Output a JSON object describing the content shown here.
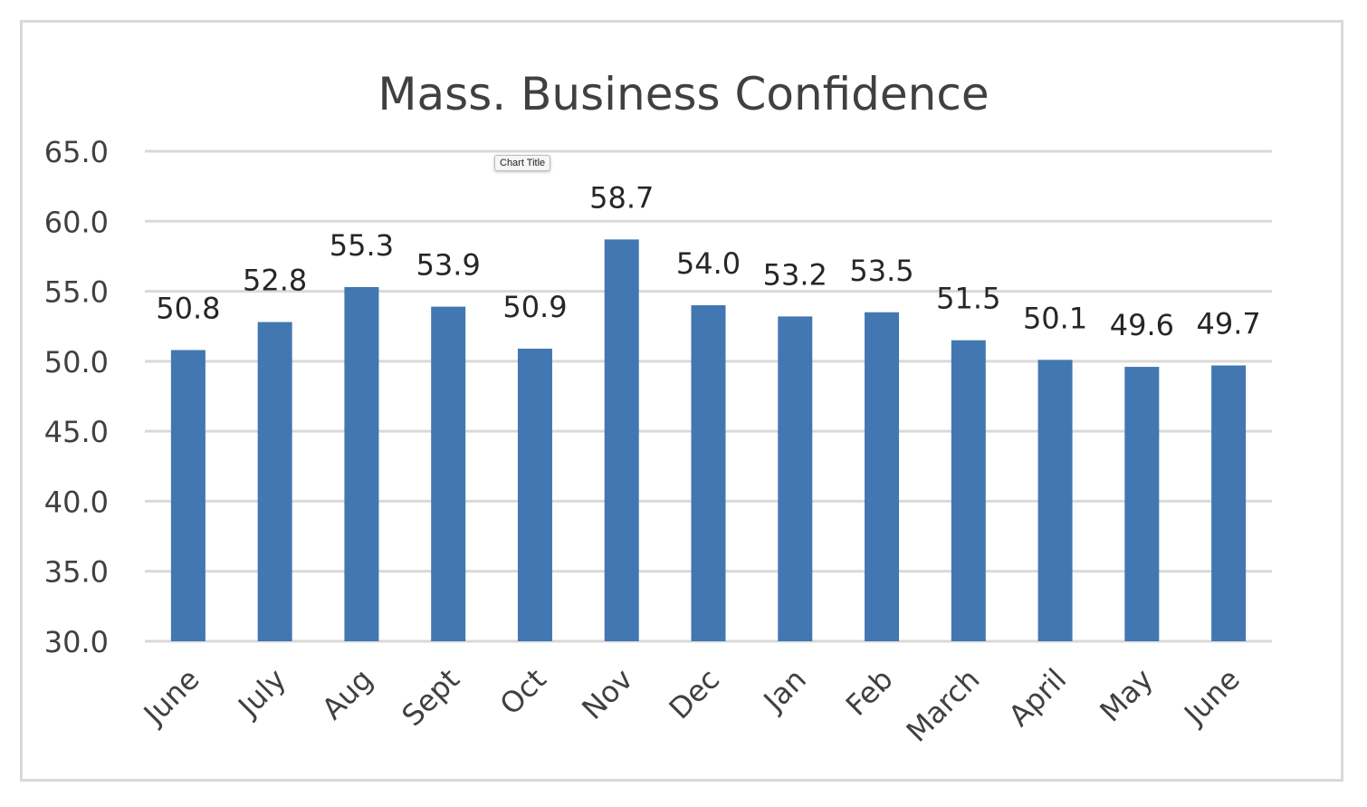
{
  "tooltip": {
    "text": "Chart Title"
  },
  "chart_data": {
    "type": "bar",
    "title": "Mass. Business Confidence",
    "categories": [
      "June",
      "July",
      "Aug",
      "Sept",
      "Oct",
      "Nov",
      "Dec",
      "Jan",
      "Feb",
      "March",
      "April",
      "May",
      "June"
    ],
    "series": [
      {
        "values": [
          50.8,
          52.8,
          55.3,
          53.9,
          50.9,
          58.7,
          54.0,
          53.2,
          53.5,
          51.5,
          50.1,
          49.6,
          49.7
        ]
      }
    ],
    "data_labels": [
      "50.8",
      "52.8",
      "55.3",
      "53.9",
      "50.9",
      "58.7",
      "54.0",
      "53.2",
      "53.5",
      "51.5",
      "50.1",
      "49.6",
      "49.7"
    ],
    "y_ticks": [
      "30.0",
      "35.0",
      "40.0",
      "45.0",
      "50.0",
      "55.0",
      "60.0",
      "65.0"
    ],
    "ylim": [
      30,
      65
    ],
    "grid": true,
    "legend": "none",
    "bar_color": "#4277b1",
    "xlabel": "",
    "ylabel": ""
  }
}
